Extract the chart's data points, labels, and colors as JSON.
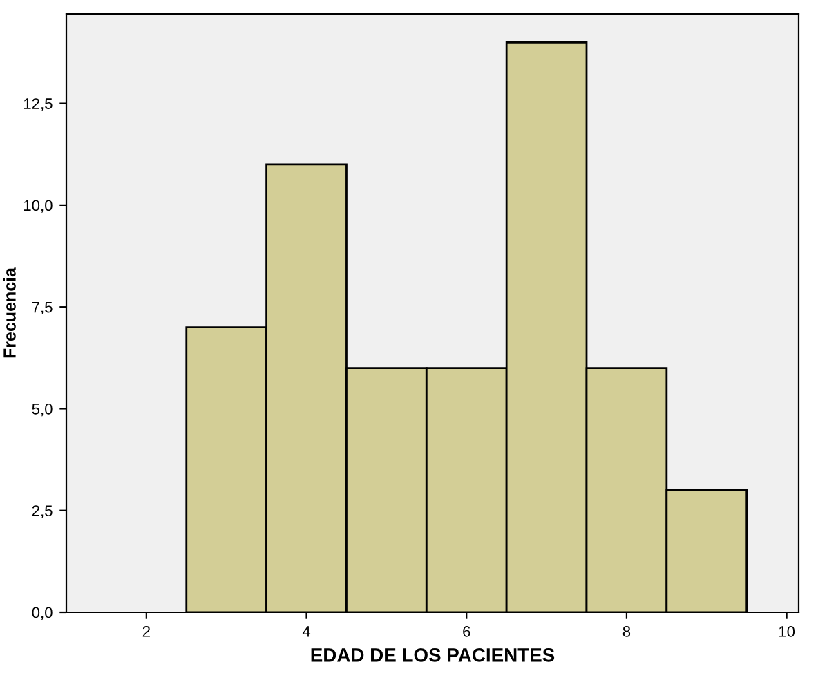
{
  "chart_data": {
    "type": "histogram",
    "xlabel": "EDAD DE LOS PACIENTES",
    "ylabel": "Frecuencia",
    "bins": [
      2.5,
      3.5,
      4.5,
      5.5,
      6.5,
      7.5,
      8.5,
      9.5
    ],
    "values": [
      7,
      11,
      6,
      6,
      14,
      6,
      3
    ],
    "color": "#d3ce96",
    "xlim": [
      1.0,
      10.15
    ],
    "ylim": [
      0,
      14.7
    ],
    "xticks": [
      2,
      4,
      6,
      8,
      10
    ],
    "yticks": [
      {
        "value": 0,
        "label": "0,0"
      },
      {
        "value": 2.5,
        "label": "2,5"
      },
      {
        "value": 5,
        "label": "5,0"
      },
      {
        "value": 7.5,
        "label": "7,5"
      },
      {
        "value": 10,
        "label": "10,0"
      },
      {
        "value": 12.5,
        "label": "12,5"
      }
    ],
    "grid": false
  }
}
